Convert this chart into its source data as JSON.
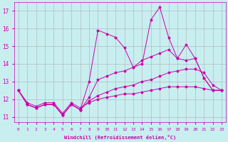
{
  "xlabel": "Windchill (Refroidissement éolien,°C)",
  "background_color": "#c8eef0",
  "grid_color": "#b0b0b0",
  "line_color": "#cc00aa",
  "xlim": [
    -0.5,
    23.5
  ],
  "ylim": [
    10.7,
    17.5
  ],
  "yticks": [
    11,
    12,
    13,
    14,
    15,
    16,
    17
  ],
  "xticks": [
    0,
    1,
    2,
    3,
    4,
    5,
    6,
    7,
    8,
    9,
    10,
    11,
    12,
    13,
    14,
    15,
    16,
    17,
    18,
    19,
    20,
    21,
    22,
    23
  ],
  "line1": [
    12.5,
    11.7,
    11.5,
    11.7,
    11.7,
    11.1,
    11.7,
    11.4,
    13.0,
    15.9,
    15.7,
    15.5,
    14.9,
    13.8,
    14.0,
    16.5,
    17.2,
    15.5,
    14.3,
    15.1,
    14.3,
    13.2,
    12.5,
    12.5
  ],
  "line2": [
    12.5,
    11.7,
    11.5,
    11.7,
    11.7,
    11.1,
    11.7,
    11.4,
    12.1,
    13.1,
    13.3,
    13.5,
    13.6,
    13.8,
    14.2,
    14.4,
    14.6,
    14.8,
    14.3,
    14.2,
    14.3,
    13.2,
    12.5,
    12.5
  ],
  "line3": [
    12.5,
    11.7,
    11.5,
    11.7,
    11.7,
    11.1,
    11.7,
    11.4,
    11.9,
    12.2,
    12.4,
    12.6,
    12.7,
    12.8,
    13.0,
    13.1,
    13.3,
    13.5,
    13.6,
    13.7,
    13.7,
    13.5,
    12.8,
    12.5
  ],
  "line4": [
    12.5,
    11.8,
    11.6,
    11.8,
    11.8,
    11.2,
    11.8,
    11.5,
    11.8,
    12.0,
    12.1,
    12.2,
    12.3,
    12.3,
    12.4,
    12.5,
    12.6,
    12.7,
    12.7,
    12.7,
    12.7,
    12.6,
    12.5,
    12.5
  ]
}
